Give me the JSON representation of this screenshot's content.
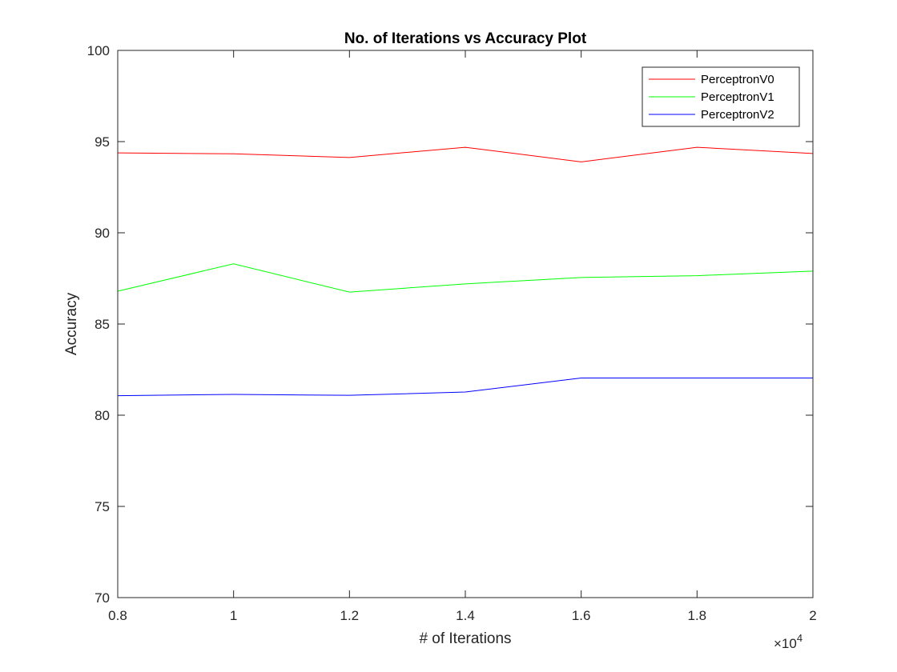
{
  "chart_data": {
    "type": "line",
    "title": "No. of Iterations vs Accuracy Plot",
    "xlabel": "# of Iterations",
    "ylabel": "Accuracy",
    "x_exponent_label": "×10",
    "x_exponent_power": "4",
    "x": [
      0.8,
      1.0,
      1.2,
      1.4,
      1.6,
      1.8,
      2.0
    ],
    "xlim": [
      0.8,
      2.0
    ],
    "ylim": [
      70,
      100
    ],
    "x_ticks": [
      0.8,
      1.0,
      1.2,
      1.4,
      1.6,
      1.8,
      2.0
    ],
    "x_tick_labels": [
      "0.8",
      "1",
      "1.2",
      "1.4",
      "1.6",
      "1.8",
      "2"
    ],
    "y_ticks": [
      70,
      75,
      80,
      85,
      90,
      95,
      100
    ],
    "y_tick_labels": [
      "70",
      "75",
      "80",
      "85",
      "90",
      "95",
      "100"
    ],
    "grid": false,
    "legend_position": "top-right",
    "series": [
      {
        "name": "PerceptronV0",
        "color": "#ff0000",
        "values": [
          94.38,
          94.33,
          94.13,
          94.69,
          93.89,
          94.69,
          94.35
        ]
      },
      {
        "name": "PerceptronV1",
        "color": "#00ff00",
        "values": [
          86.8,
          88.3,
          86.75,
          87.2,
          87.55,
          87.65,
          87.9
        ]
      },
      {
        "name": "PerceptronV2",
        "color": "#0000ff",
        "values": [
          81.07,
          81.14,
          81.09,
          81.27,
          82.04,
          82.04,
          82.04
        ]
      }
    ]
  }
}
